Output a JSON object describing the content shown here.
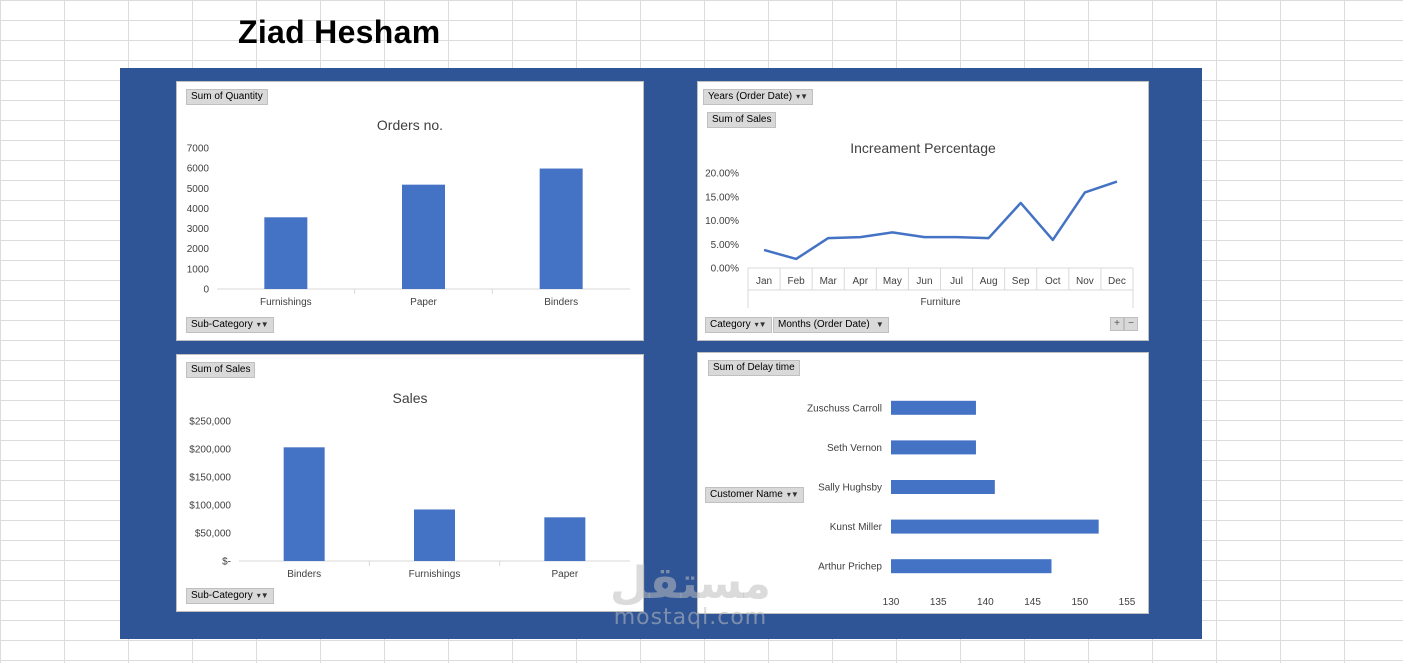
{
  "header": {
    "title": "Ziad Hesham"
  },
  "watermark": {
    "arabic": "مستقل",
    "latin": "mostaql.com"
  },
  "chart_data": [
    {
      "id": "orders",
      "type": "bar",
      "title": "Orders no.",
      "field_button": "Sum of Quantity",
      "axis_button": "Sub-Category",
      "categories": [
        "Furnishings",
        "Paper",
        "Binders"
      ],
      "values": [
        3560,
        5180,
        5980
      ],
      "ylim": [
        0,
        7000
      ],
      "yticks": [
        "0",
        "1000",
        "2000",
        "3000",
        "4000",
        "5000",
        "6000",
        "7000"
      ],
      "ytick_values": [
        0,
        1000,
        2000,
        3000,
        4000,
        5000,
        6000,
        7000
      ],
      "color": "#4472c4"
    },
    {
      "id": "increment",
      "type": "line",
      "title": "Increament Percentage",
      "field_buttons": [
        "Years (Order Date)",
        "Sum of Sales"
      ],
      "axis_buttons": [
        "Category",
        "Months (Order Date)"
      ],
      "categories": [
        "Jan",
        "Feb",
        "Mar",
        "Apr",
        "May",
        "Jun",
        "Jul",
        "Aug",
        "Sep",
        "Oct",
        "Nov",
        "Dec"
      ],
      "group_label": "Furniture",
      "values": [
        3.8,
        1.9,
        6.3,
        6.5,
        7.5,
        6.5,
        6.5,
        6.3,
        13.7,
        5.9,
        15.9,
        18.2
      ],
      "ylim": [
        0,
        20
      ],
      "yticks": [
        "0.00%",
        "5.00%",
        "10.00%",
        "15.00%",
        "20.00%"
      ],
      "ytick_values": [
        0,
        5,
        10,
        15,
        20
      ],
      "color": "#4472c4",
      "expand_buttons": [
        "+",
        "−"
      ]
    },
    {
      "id": "sales",
      "type": "bar",
      "title": "Sales",
      "field_button": "Sum of Sales",
      "axis_button": "Sub-Category",
      "categories": [
        "Binders",
        "Furnishings",
        "Paper"
      ],
      "values": [
        203000,
        92000,
        78000
      ],
      "ylim": [
        0,
        250000
      ],
      "yticks": [
        "$-",
        "$50,000",
        "$100,000",
        "$150,000",
        "$200,000",
        "$250,000"
      ],
      "ytick_values": [
        0,
        50000,
        100000,
        150000,
        200000,
        250000
      ],
      "color": "#4472c4"
    },
    {
      "id": "delay",
      "type": "bar",
      "orientation": "horizontal",
      "field_button": "Sum of Delay time",
      "axis_button": "Customer Name",
      "categories": [
        "Zuschuss Carroll",
        "Seth Vernon",
        "Sally Hughsby",
        "Kunst Miller",
        "Arthur Prichep"
      ],
      "values": [
        139,
        139,
        141,
        152,
        147
      ],
      "xlim": [
        130,
        155
      ],
      "xticks": [
        "130",
        "135",
        "140",
        "145",
        "150",
        "155"
      ],
      "xtick_values": [
        130,
        135,
        140,
        145,
        150,
        155
      ],
      "color": "#4472c4"
    }
  ]
}
